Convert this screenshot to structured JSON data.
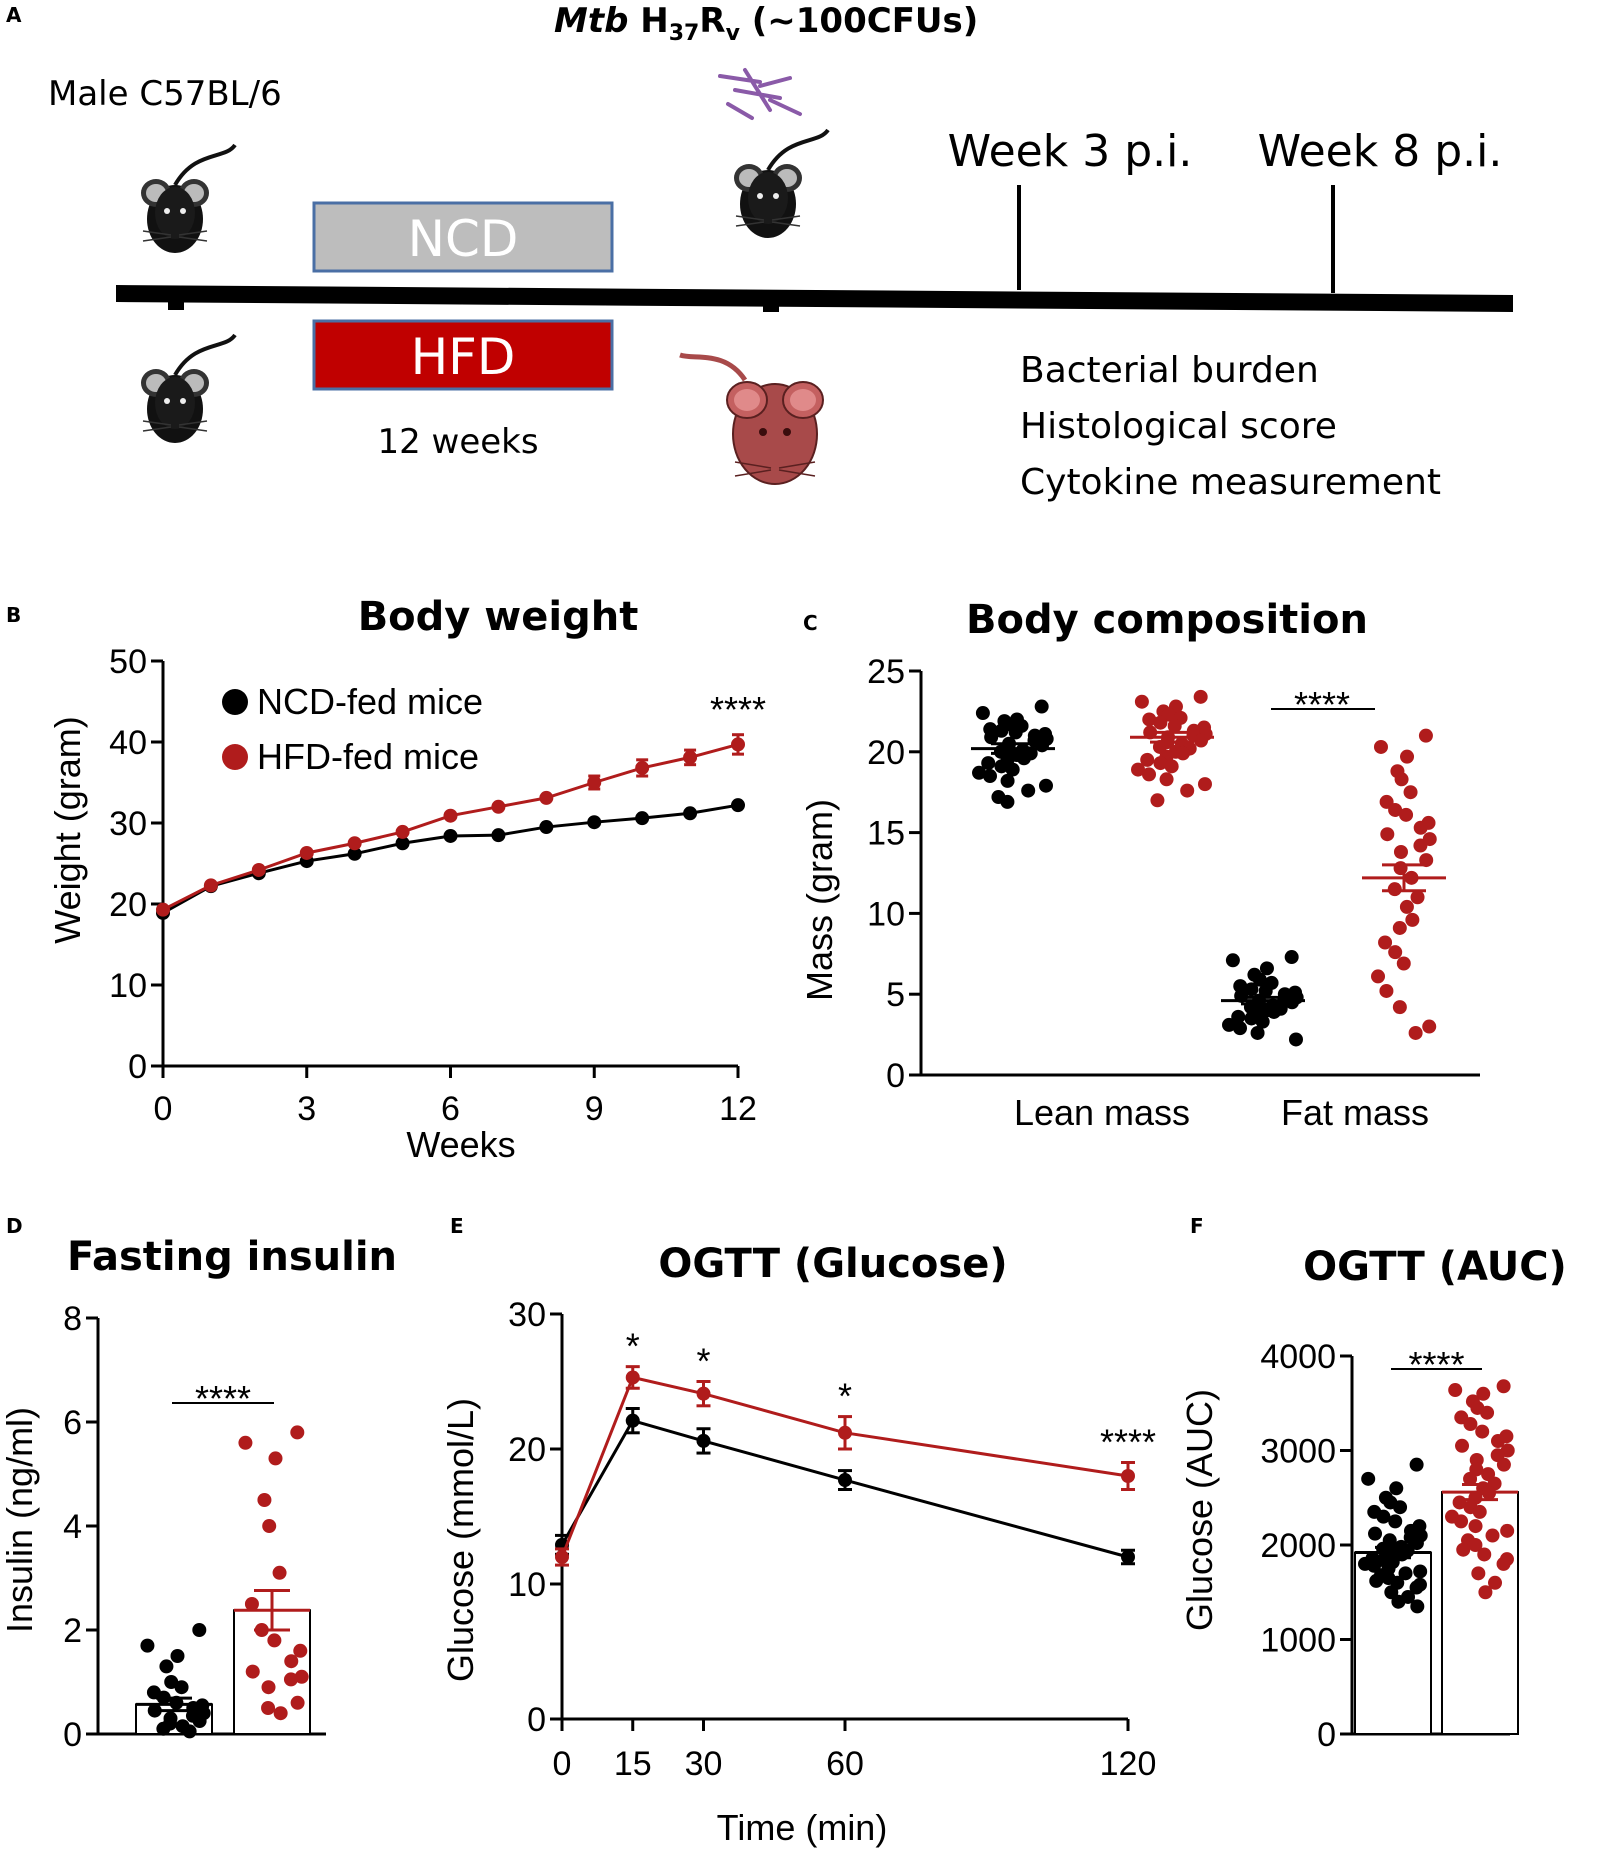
{
  "colors": {
    "ncd": "#000000",
    "hfd": "#b01c1c",
    "ncd_box": "#bdbdbd",
    "box_border": "#4a6fa5",
    "mouse_black": "#111111",
    "mouse_red": "#a84a4a"
  },
  "panel_a": {
    "letter": "A",
    "title_italic": "Mtb",
    "title_h": "H",
    "title_sub1": "37",
    "title_r": "R",
    "title_sub2": "v",
    "title_rest": "(~100CFUs)",
    "mouse_strain": "Male C57BL/6",
    "ncd_label": "NCD",
    "hfd_label": "HFD",
    "duration": "12 weeks",
    "week3": "Week 3 p.i.",
    "week8": "Week 8 p.i.",
    "readouts": [
      "Bacterial burden",
      "Histological score",
      "Cytokine measurement"
    ]
  },
  "panel_b": {
    "letter": "B"
  },
  "panel_c": {
    "letter": "C"
  },
  "panel_d": {
    "letter": "D"
  },
  "panel_e": {
    "letter": "E"
  },
  "panel_f": {
    "letter": "F"
  },
  "chart_data": [
    {
      "id": "B",
      "type": "line",
      "title": "Body weight",
      "xlabel": "Weeks",
      "ylabel": "Weight (gram)",
      "xlim": [
        0,
        12
      ],
      "ylim": [
        0,
        50
      ],
      "xticks": [
        0,
        3,
        6,
        9,
        12
      ],
      "yticks": [
        0,
        10,
        20,
        30,
        40,
        50
      ],
      "x": [
        0,
        1,
        2,
        3,
        4,
        5,
        6,
        7,
        8,
        9,
        10,
        11,
        12
      ],
      "series": [
        {
          "name": "NCD-fed mice",
          "values": [
            18.9,
            22.2,
            23.8,
            25.3,
            26.2,
            27.5,
            28.4,
            28.5,
            29.5,
            30.1,
            30.6,
            31.2,
            32.2
          ],
          "errors": [
            0,
            0,
            0,
            0,
            0,
            0,
            0,
            0,
            0,
            0,
            0,
            0,
            0
          ]
        },
        {
          "name": "HFD-fed mice",
          "values": [
            19.3,
            22.3,
            24.2,
            26.3,
            27.5,
            28.9,
            30.9,
            32.0,
            33.1,
            35.0,
            36.8,
            38.1,
            39.7
          ],
          "errors": [
            0,
            0,
            0,
            0,
            0,
            0,
            0,
            0,
            0,
            0.8,
            1.0,
            0.9,
            1.2
          ]
        }
      ],
      "annotations": [
        {
          "text": "****",
          "x": 11.5
        }
      ]
    },
    {
      "id": "C",
      "type": "scatter",
      "title": "Body composition",
      "xlabel": "",
      "ylabel": "Mass (gram)",
      "ylim": [
        0,
        25
      ],
      "yticks": [
        0,
        5,
        10,
        15,
        20,
        25
      ],
      "categories": [
        "Lean mass",
        "Fat mass"
      ],
      "groups": [
        {
          "category": "Lean mass",
          "series": "NCD",
          "mean": 20.2,
          "sem": 0.3,
          "points": [
            22.8,
            22.4,
            22.0,
            21.9,
            21.7,
            21.6,
            21.4,
            21.3,
            21.2,
            21.1,
            21.0,
            20.9,
            20.8,
            20.7,
            20.5,
            20.4,
            20.3,
            20.1,
            20.0,
            19.9,
            19.8,
            19.6,
            19.5,
            19.3,
            19.1,
            18.9,
            18.7,
            18.5,
            18.2,
            17.9,
            17.6,
            17.2,
            16.9
          ]
        },
        {
          "category": "Lean mass",
          "series": "HFD",
          "mean": 20.9,
          "sem": 0.3,
          "points": [
            23.4,
            23.1,
            22.8,
            22.5,
            22.3,
            22.1,
            22.0,
            21.8,
            21.6,
            21.5,
            21.3,
            21.2,
            21.1,
            21.0,
            20.9,
            20.7,
            20.6,
            20.5,
            20.3,
            20.2,
            20.0,
            19.9,
            19.7,
            19.5,
            19.3,
            19.1,
            18.9,
            18.6,
            18.3,
            18.0,
            17.6,
            17.0
          ]
        },
        {
          "category": "Fat mass",
          "series": "NCD",
          "mean": 4.6,
          "sem": 0.2,
          "points": [
            7.3,
            7.1,
            6.6,
            6.2,
            5.9,
            5.7,
            5.5,
            5.3,
            5.2,
            5.1,
            5.0,
            4.9,
            4.8,
            4.7,
            4.6,
            4.5,
            4.4,
            4.3,
            4.2,
            4.1,
            4.0,
            3.9,
            3.8,
            3.6,
            3.5,
            3.3,
            3.1,
            2.9,
            2.6,
            2.2
          ]
        },
        {
          "category": "Fat mass",
          "series": "HFD",
          "mean": 12.2,
          "sem": 0.8,
          "points": [
            21.0,
            20.3,
            19.7,
            18.8,
            18.3,
            17.5,
            16.9,
            16.4,
            16.1,
            15.6,
            15.3,
            14.9,
            14.6,
            14.2,
            13.8,
            13.3,
            12.8,
            12.2,
            11.5,
            11.0,
            10.4,
            9.6,
            9.1,
            8.2,
            7.6,
            6.9,
            6.1,
            5.2,
            4.2,
            3.0,
            2.6
          ]
        }
      ],
      "annotations": [
        {
          "text": "****",
          "between": "Fat mass NCD and HFD"
        }
      ]
    },
    {
      "id": "D",
      "type": "bar",
      "title": "Fasting insulin",
      "xlabel": "",
      "ylabel": "Insulin (ng/ml)",
      "ylim": [
        0,
        8
      ],
      "yticks": [
        0,
        2,
        4,
        6,
        8
      ],
      "series": [
        {
          "name": "NCD",
          "mean": 0.57,
          "sem": 0.12,
          "points": [
            2.0,
            1.7,
            1.5,
            1.3,
            1.0,
            0.9,
            0.8,
            0.7,
            0.6,
            0.55,
            0.5,
            0.45,
            0.4,
            0.35,
            0.3,
            0.25,
            0.2,
            0.15,
            0.1,
            0.05
          ]
        },
        {
          "name": "HFD",
          "mean": 2.38,
          "sem": 0.38,
          "points": [
            5.8,
            5.6,
            5.3,
            4.5,
            4.0,
            3.1,
            2.5,
            2.0,
            1.8,
            1.6,
            1.4,
            1.2,
            1.1,
            1.05,
            0.9,
            0.6,
            0.5,
            0.4
          ]
        }
      ],
      "annotations": [
        {
          "text": "****"
        }
      ]
    },
    {
      "id": "E",
      "type": "line",
      "title": "OGTT (Glucose)",
      "xlabel": "Time (min)",
      "ylabel": "Glucose (mmol/L)",
      "xlim": [
        0,
        120
      ],
      "ylim": [
        0,
        30
      ],
      "xticks": [
        0,
        15,
        30,
        60,
        120
      ],
      "yticks": [
        0,
        10,
        20,
        30
      ],
      "x": [
        0,
        15,
        30,
        60,
        120
      ],
      "series": [
        {
          "name": "NCD",
          "values": [
            12.9,
            22.1,
            20.6,
            17.7,
            12.0
          ],
          "errors": [
            0.7,
            0.9,
            0.9,
            0.7,
            0.5
          ]
        },
        {
          "name": "HFD",
          "values": [
            12.0,
            25.3,
            24.1,
            21.2,
            18.0
          ],
          "errors": [
            0.6,
            0.8,
            0.9,
            1.2,
            1.0
          ]
        }
      ],
      "annotations": [
        {
          "text": "*",
          "x": 15
        },
        {
          "text": "*",
          "x": 30
        },
        {
          "text": "*",
          "x": 60
        },
        {
          "text": "****",
          "x": 120
        }
      ]
    },
    {
      "id": "F",
      "type": "bar",
      "title": "OGTT (AUC)",
      "xlabel": "",
      "ylabel": "Glucose (AUC)",
      "ylim": [
        0,
        4000
      ],
      "yticks": [
        0,
        1000,
        2000,
        3000,
        4000
      ],
      "series": [
        {
          "name": "NCD",
          "mean": 1920,
          "sem": 55,
          "points": [
            2850,
            2700,
            2600,
            2500,
            2450,
            2400,
            2350,
            2300,
            2250,
            2200,
            2150,
            2120,
            2100,
            2080,
            2050,
            2020,
            2000,
            1980,
            1960,
            1940,
            1920,
            1900,
            1880,
            1860,
            1840,
            1820,
            1800,
            1780,
            1750,
            1720,
            1700,
            1680,
            1650,
            1620,
            1600,
            1580,
            1550,
            1500,
            1450,
            1400,
            1350
          ]
        },
        {
          "name": "HFD",
          "mean": 2560,
          "sem": 80,
          "points": [
            3680,
            3640,
            3600,
            3520,
            3450,
            3400,
            3350,
            3280,
            3200,
            3150,
            3100,
            3050,
            3000,
            2950,
            2900,
            2850,
            2800,
            2750,
            2700,
            2650,
            2600,
            2550,
            2500,
            2450,
            2400,
            2350,
            2300,
            2250,
            2200,
            2150,
            2100,
            2050,
            2000,
            1950,
            1900,
            1850,
            1800,
            1700,
            1600,
            1500
          ]
        }
      ],
      "annotations": [
        {
          "text": "****"
        }
      ]
    }
  ]
}
